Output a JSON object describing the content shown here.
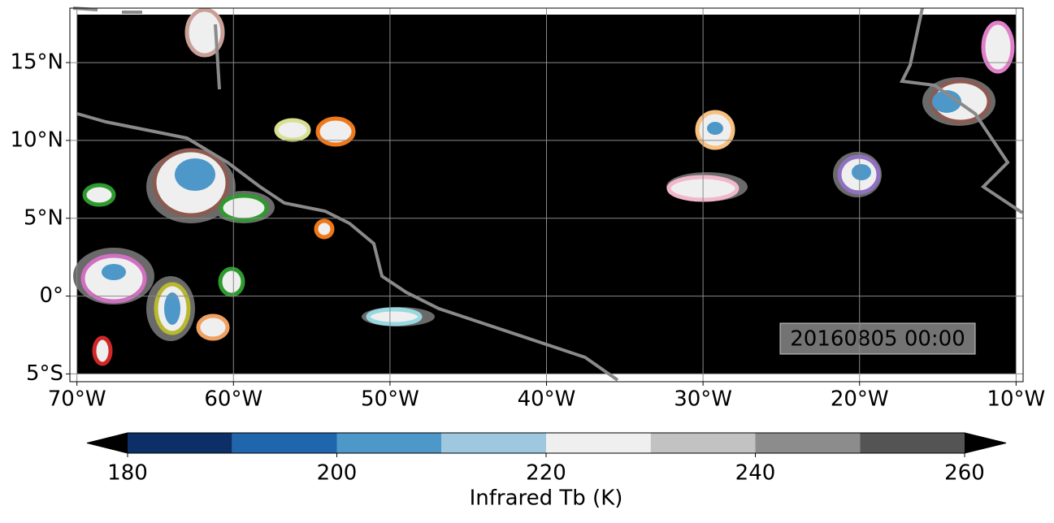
{
  "map": {
    "xlim": [
      -70.45,
      -9.55
    ],
    "ylim": [
      -5.5,
      18.5
    ],
    "xticks": [
      {
        "value": -70,
        "label": "70°W"
      },
      {
        "value": -60,
        "label": "60°W"
      },
      {
        "value": -50,
        "label": "50°W"
      },
      {
        "value": -40,
        "label": "40°W"
      },
      {
        "value": -30,
        "label": "30°W"
      },
      {
        "value": -20,
        "label": "20°W"
      },
      {
        "value": -10,
        "label": "10°W"
      }
    ],
    "yticks": [
      {
        "value": -5,
        "label": "5°S"
      },
      {
        "value": 0,
        "label": "0°"
      },
      {
        "value": 5,
        "label": "5°N"
      },
      {
        "value": 10,
        "label": "10°N"
      },
      {
        "value": 15,
        "label": "15°N"
      }
    ],
    "grid": true,
    "background": "#000000",
    "timestamp": "20160805 00:00"
  },
  "colorbar": {
    "levels": [
      180,
      190,
      200,
      210,
      220,
      230,
      240,
      250,
      260
    ],
    "colors": [
      "#0b2f66",
      "#1f66ad",
      "#4d98c9",
      "#9ec8e0",
      "#efefef",
      "#c2c2c2",
      "#8c8c8c",
      "#545454"
    ],
    "under_color": "#000000",
    "over_color": "#000000",
    "lim": [
      180,
      260
    ],
    "ticks": [
      180,
      200,
      220,
      240,
      260
    ],
    "label": "Infrared Tb (K)"
  }
}
